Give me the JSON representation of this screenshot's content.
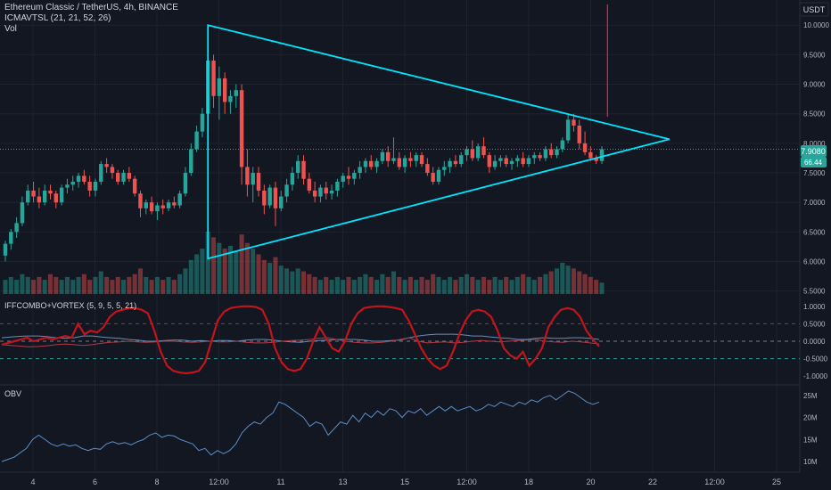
{
  "header": {
    "symbol_line": "Ethereum Classic / TetherUS, 4h, BINANCE",
    "indicator_line": "ICMAVTSL (21, 21, 52, 26)",
    "volume_label": "Vol",
    "currency": "USDT"
  },
  "price_pane": {
    "y_ticks": [
      "10.0000",
      "9.5000",
      "9.0000",
      "8.5000",
      "8.0000",
      "7.5000",
      "7.0000",
      "6.5000",
      "6.0000",
      "5.5000"
    ],
    "last_price_label": "7.9080",
    "secondary_label": "66.44",
    "colors": {
      "up": "#26a69a",
      "down": "#ef5350",
      "triangle": "#00e5ff",
      "red_line": "#ff1744"
    }
  },
  "osc_pane": {
    "title": "IFFCOMBO+VORTEX (5, 9, 5, 5, 21)",
    "y_ticks": [
      "1.0000",
      "0.5000",
      "0.0000",
      "-0.5000",
      "-1.0000"
    ]
  },
  "obv_pane": {
    "title": "OBV",
    "y_ticks": [
      "25M",
      "20M",
      "15M",
      "10M"
    ]
  },
  "x_axis": {
    "labels": [
      "4",
      "6",
      "8",
      "12:00",
      "11",
      "13",
      "15",
      "12:00",
      "18",
      "20",
      "22",
      "12:00",
      "25"
    ]
  },
  "chart_data": {
    "type": "candlestick",
    "price_y_range": [
      5.45,
      10.35
    ],
    "candles": [
      [
        6.1,
        6.35,
        6.0,
        6.3
      ],
      [
        6.3,
        6.55,
        6.2,
        6.5
      ],
      [
        6.5,
        6.75,
        6.4,
        6.65
      ],
      [
        6.65,
        7.1,
        6.6,
        7.0
      ],
      [
        7.0,
        7.3,
        6.95,
        7.2
      ],
      [
        7.2,
        7.35,
        7.0,
        7.1
      ],
      [
        7.1,
        7.25,
        6.9,
        7.0
      ],
      [
        7.0,
        7.3,
        6.95,
        7.2
      ],
      [
        7.2,
        7.3,
        7.05,
        7.15
      ],
      [
        7.15,
        7.2,
        6.9,
        7.0
      ],
      [
        7.0,
        7.3,
        6.95,
        7.25
      ],
      [
        7.25,
        7.4,
        7.15,
        7.3
      ],
      [
        7.3,
        7.45,
        7.2,
        7.35
      ],
      [
        7.35,
        7.5,
        7.25,
        7.45
      ],
      [
        7.45,
        7.55,
        7.3,
        7.35
      ],
      [
        7.35,
        7.45,
        7.1,
        7.2
      ],
      [
        7.2,
        7.4,
        7.1,
        7.35
      ],
      [
        7.35,
        7.7,
        7.3,
        7.65
      ],
      [
        7.65,
        7.75,
        7.5,
        7.6
      ],
      [
        7.6,
        7.65,
        7.4,
        7.5
      ],
      [
        7.5,
        7.55,
        7.3,
        7.35
      ],
      [
        7.35,
        7.55,
        7.3,
        7.5
      ],
      [
        7.5,
        7.6,
        7.35,
        7.4
      ],
      [
        7.4,
        7.45,
        7.1,
        7.15
      ],
      [
        7.15,
        7.2,
        6.75,
        6.9
      ],
      [
        6.9,
        7.05,
        6.8,
        7.0
      ],
      [
        7.0,
        7.1,
        6.8,
        6.85
      ],
      [
        6.85,
        7.0,
        6.7,
        6.95
      ],
      [
        6.95,
        7.05,
        6.8,
        6.9
      ],
      [
        6.9,
        7.05,
        6.85,
        7.0
      ],
      [
        7.0,
        7.1,
        6.9,
        6.95
      ],
      [
        6.95,
        7.2,
        6.9,
        7.15
      ],
      [
        7.15,
        7.6,
        7.1,
        7.5
      ],
      [
        7.5,
        8.0,
        7.45,
        7.9
      ],
      [
        7.9,
        8.3,
        7.85,
        8.2
      ],
      [
        8.2,
        8.6,
        8.1,
        8.5
      ],
      [
        8.5,
        9.6,
        8.4,
        9.4
      ],
      [
        9.4,
        9.5,
        8.6,
        8.8
      ],
      [
        8.8,
        9.3,
        8.4,
        9.1
      ],
      [
        9.1,
        9.2,
        8.5,
        8.7
      ],
      [
        8.7,
        8.9,
        8.5,
        8.8
      ],
      [
        8.8,
        9.0,
        8.6,
        8.9
      ],
      [
        8.9,
        9.0,
        7.3,
        7.6
      ],
      [
        7.6,
        7.9,
        7.1,
        7.3
      ],
      [
        7.3,
        7.6,
        7.0,
        7.5
      ],
      [
        7.5,
        7.6,
        7.1,
        7.2
      ],
      [
        7.2,
        7.3,
        6.8,
        6.95
      ],
      [
        6.95,
        7.3,
        6.9,
        7.25
      ],
      [
        7.25,
        7.35,
        6.6,
        6.9
      ],
      [
        6.9,
        7.2,
        6.85,
        7.1
      ],
      [
        7.1,
        7.4,
        7.0,
        7.3
      ],
      [
        7.3,
        7.6,
        7.2,
        7.5
      ],
      [
        7.5,
        7.8,
        7.4,
        7.7
      ],
      [
        7.7,
        7.8,
        7.3,
        7.4
      ],
      [
        7.4,
        7.5,
        7.15,
        7.2
      ],
      [
        7.2,
        7.35,
        7.0,
        7.1
      ],
      [
        7.1,
        7.3,
        7.0,
        7.25
      ],
      [
        7.25,
        7.35,
        7.05,
        7.15
      ],
      [
        7.15,
        7.3,
        7.05,
        7.2
      ],
      [
        7.2,
        7.4,
        7.1,
        7.35
      ],
      [
        7.35,
        7.5,
        7.25,
        7.45
      ],
      [
        7.45,
        7.6,
        7.3,
        7.4
      ],
      [
        7.4,
        7.55,
        7.3,
        7.5
      ],
      [
        7.5,
        7.7,
        7.4,
        7.6
      ],
      [
        7.6,
        7.75,
        7.5,
        7.7
      ],
      [
        7.7,
        7.8,
        7.55,
        7.6
      ],
      [
        7.6,
        7.75,
        7.5,
        7.7
      ],
      [
        7.7,
        7.9,
        7.65,
        7.85
      ],
      [
        7.85,
        7.95,
        7.6,
        7.7
      ],
      [
        7.7,
        8.1,
        7.65,
        7.75
      ],
      [
        7.75,
        7.85,
        7.55,
        7.6
      ],
      [
        7.6,
        7.8,
        7.5,
        7.75
      ],
      [
        7.75,
        7.85,
        7.6,
        7.7
      ],
      [
        7.7,
        7.85,
        7.6,
        7.8
      ],
      [
        7.8,
        7.85,
        7.6,
        7.65
      ],
      [
        7.65,
        7.75,
        7.45,
        7.5
      ],
      [
        7.5,
        7.6,
        7.3,
        7.35
      ],
      [
        7.35,
        7.6,
        7.3,
        7.55
      ],
      [
        7.55,
        7.7,
        7.45,
        7.6
      ],
      [
        7.6,
        7.75,
        7.5,
        7.7
      ],
      [
        7.7,
        7.8,
        7.6,
        7.65
      ],
      [
        7.65,
        7.85,
        7.6,
        7.8
      ],
      [
        7.8,
        7.95,
        7.7,
        7.9
      ],
      [
        7.9,
        8.05,
        7.7,
        7.75
      ],
      [
        7.75,
        8.0,
        7.7,
        7.95
      ],
      [
        7.95,
        8.1,
        7.75,
        7.8
      ],
      [
        7.8,
        7.85,
        7.5,
        7.6
      ],
      [
        7.6,
        7.8,
        7.55,
        7.7
      ],
      [
        7.7,
        7.8,
        7.6,
        7.75
      ],
      [
        7.75,
        7.8,
        7.6,
        7.65
      ],
      [
        7.65,
        7.75,
        7.55,
        7.7
      ],
      [
        7.7,
        7.8,
        7.6,
        7.75
      ],
      [
        7.75,
        7.85,
        7.6,
        7.65
      ],
      [
        7.65,
        7.8,
        7.6,
        7.75
      ],
      [
        7.75,
        7.85,
        7.65,
        7.8
      ],
      [
        7.8,
        7.85,
        7.7,
        7.75
      ],
      [
        7.75,
        7.95,
        7.7,
        7.9
      ],
      [
        7.9,
        8.0,
        7.75,
        7.8
      ],
      [
        7.8,
        7.95,
        7.75,
        7.9
      ],
      [
        7.9,
        8.1,
        7.85,
        8.05
      ],
      [
        8.05,
        8.5,
        8.0,
        8.4
      ],
      [
        8.4,
        8.5,
        8.2,
        8.3
      ],
      [
        8.3,
        8.4,
        7.9,
        8.0
      ],
      [
        8.0,
        8.2,
        7.8,
        7.85
      ],
      [
        7.85,
        7.95,
        7.7,
        7.75
      ],
      [
        7.75,
        7.8,
        7.65,
        7.7
      ],
      [
        7.7,
        7.95,
        7.65,
        7.9
      ]
    ],
    "volumes": [
      5,
      6,
      5,
      7,
      6,
      5,
      6,
      5,
      7,
      6,
      5,
      6,
      5,
      6,
      7,
      5,
      6,
      8,
      6,
      5,
      6,
      5,
      6,
      7,
      9,
      6,
      5,
      6,
      5,
      6,
      5,
      7,
      9,
      12,
      14,
      16,
      22,
      20,
      18,
      16,
      17,
      15,
      21,
      18,
      16,
      14,
      12,
      11,
      13,
      10,
      9,
      8,
      9,
      8,
      7,
      6,
      5,
      6,
      5,
      6,
      5,
      6,
      5,
      6,
      7,
      6,
      5,
      7,
      6,
      8,
      6,
      5,
      6,
      5,
      6,
      5,
      7,
      6,
      5,
      6,
      5,
      6,
      7,
      6,
      5,
      6,
      5,
      6,
      5,
      6,
      5,
      6,
      7,
      6,
      5,
      6,
      7,
      8,
      9,
      11,
      10,
      9,
      8,
      7,
      6,
      5,
      4
    ],
    "triangle": [
      [
        36,
        10.0
      ],
      [
        36,
        6.05
      ],
      [
        118,
        8.07
      ]
    ],
    "red_vertical": [
      [
        107,
        8.45
      ],
      [
        107,
        10.35
      ]
    ],
    "osc_y_range": [
      -1.2,
      1.25
    ],
    "osc_levels": [
      0.5,
      0,
      -0.5
    ],
    "iff": [
      -0.1,
      -0.05,
      0.0,
      0.05,
      0.1,
      0.0,
      0.05,
      0.1,
      0.05,
      0.1,
      0.15,
      0.1,
      0.5,
      0.2,
      0.3,
      0.25,
      0.4,
      0.7,
      0.85,
      0.9,
      0.95,
      0.95,
      0.9,
      0.8,
      0.3,
      -0.3,
      -0.7,
      -0.85,
      -0.9,
      -0.92,
      -0.9,
      -0.85,
      -0.6,
      0.0,
      0.6,
      0.85,
      0.95,
      0.98,
      1.0,
      1.0,
      0.98,
      0.9,
      0.5,
      -0.2,
      -0.6,
      -0.8,
      -0.85,
      -0.8,
      -0.5,
      0.0,
      0.4,
      0.1,
      -0.2,
      -0.3,
      0.0,
      0.5,
      0.8,
      0.95,
      0.98,
      1.0,
      1.0,
      0.98,
      0.95,
      0.9,
      0.6,
      0.2,
      -0.2,
      -0.5,
      -0.7,
      -0.8,
      -0.7,
      -0.3,
      0.2,
      0.6,
      0.85,
      0.9,
      0.85,
      0.7,
      0.3,
      -0.2,
      -0.4,
      -0.5,
      -0.3,
      -0.7,
      -0.5,
      -0.2,
      0.4,
      0.7,
      0.9,
      0.95,
      0.9,
      0.7,
      0.3,
      0.05,
      -0.15
    ],
    "vortex_a": [
      0.1,
      0.12,
      0.14,
      0.15,
      0.15,
      0.13,
      0.1,
      0.08,
      0.1,
      0.15,
      0.15,
      0.12,
      0.1,
      0.08,
      0.05,
      0.03,
      0.0,
      0.0,
      0.02,
      0.03,
      0.03,
      0.0,
      0.02,
      0.0,
      0.02,
      0.02,
      0.0,
      0.03,
      0.05,
      0.05,
      0.03,
      0.0,
      -0.02,
      -0.03,
      0.0,
      0.02,
      0.03,
      0.05,
      0.05,
      0.05,
      0.03,
      0.0,
      0.0,
      0.02,
      0.03,
      0.1,
      0.15,
      0.18,
      0.2,
      0.2,
      0.2,
      0.18,
      0.15,
      0.15,
      0.12,
      0.1,
      0.08,
      0.05,
      0.05,
      0.08,
      0.1,
      0.08,
      0.08,
      0.1,
      0.1,
      0.08,
      0.05
    ],
    "vortex_b": [
      -0.1,
      -0.12,
      -0.14,
      -0.16,
      -0.15,
      -0.13,
      -0.1,
      -0.08,
      -0.1,
      -0.12,
      -0.1,
      -0.06,
      -0.03,
      -0.02,
      0.0,
      -0.02,
      -0.03,
      -0.02,
      0.0,
      0.0,
      -0.02,
      -0.03,
      -0.02,
      0.0,
      -0.02,
      -0.02,
      0.0,
      -0.03,
      -0.05,
      -0.05,
      -0.03,
      0.0,
      0.02,
      0.03,
      0.05,
      0.08,
      0.1,
      0.05,
      0.0,
      -0.03,
      -0.05,
      -0.05,
      -0.03,
      0.0,
      0.05,
      0.1,
      0.0,
      -0.05,
      -0.03,
      -0.02,
      -0.05,
      -0.03,
      0.0,
      0.02,
      0.0,
      -0.02,
      0.0,
      0.02,
      0.03,
      0.05,
      0.0,
      -0.02,
      -0.03,
      0.0,
      -0.02,
      -0.05,
      -0.08
    ],
    "obv_y_range": [
      8,
      27
    ],
    "obv": [
      10,
      10.5,
      11,
      12,
      13,
      15,
      16,
      15,
      14,
      13.5,
      14,
      13.5,
      13.8,
      13,
      12.5,
      13,
      12.8,
      14,
      14.5,
      14,
      14.3,
      13.8,
      14.5,
      15,
      16,
      16.5,
      15.5,
      16,
      15.8,
      15,
      14.5,
      14,
      12.5,
      13,
      11.5,
      12.5,
      11.8,
      12.5,
      14,
      16.5,
      18,
      19,
      18.5,
      20,
      21,
      23.5,
      23,
      22,
      21,
      20,
      18,
      19,
      18.5,
      16,
      17.5,
      19,
      18.5,
      20.5,
      19,
      21,
      20,
      21.5,
      20.5,
      22,
      21.5,
      20,
      21.5,
      21,
      22,
      20.5,
      21.5,
      22.5,
      21.5,
      22.5,
      21.5,
      22,
      22.5,
      21.5,
      22,
      23,
      22.5,
      23.5,
      23,
      22.5,
      23.5,
      23,
      24,
      23.5,
      24.5,
      25,
      24,
      25,
      26,
      25.5,
      24.5,
      23.5,
      23,
      23.5
    ]
  }
}
